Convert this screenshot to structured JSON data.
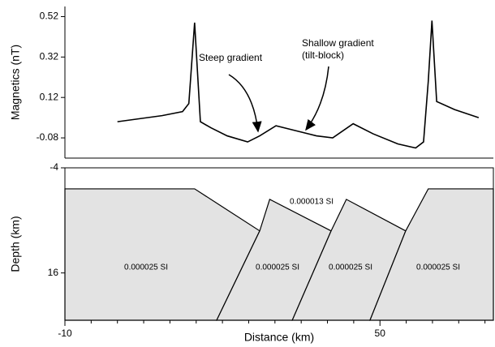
{
  "chart_data": [
    {
      "type": "line",
      "ylabel": "Magnetics (nT)",
      "x": [
        0,
        8.5,
        12.4,
        13.6,
        14.7,
        15.8,
        17.8,
        20.9,
        24.8,
        27.1,
        30.2,
        33.3,
        37.9,
        41,
        44.9,
        48.7,
        53.4,
        56.8,
        58.3,
        59.2,
        59.9,
        60.8,
        64.2,
        68.8
      ],
      "series": [
        {
          "color": "#000000",
          "values": [
            0.0,
            0.03,
            0.05,
            0.09,
            0.49,
            0.0,
            -0.03,
            -0.07,
            -0.1,
            -0.07,
            -0.02,
            -0.04,
            -0.07,
            -0.08,
            -0.01,
            -0.06,
            -0.11,
            -0.13,
            -0.1,
            0.2,
            0.5,
            0.1,
            0.06,
            0.02
          ]
        }
      ],
      "xlim": [
        -10,
        71.6
      ],
      "ylim": [
        -0.18,
        0.57
      ],
      "yticks": [
        0.52,
        0.32,
        0.12,
        -0.08
      ],
      "annotations": [
        "Steep gradient",
        "Shallow gradient",
        "(tilt-block)"
      ]
    },
    {
      "type": "polygon",
      "xlabel": "Distance (km)",
      "ylabel": "Depth (km)",
      "xlim": [
        -10,
        71.6
      ],
      "ylim": [
        25,
        -4
      ],
      "xticks": [
        -10,
        50
      ],
      "yticks": [
        -4,
        16
      ],
      "xticks_minor": [
        -5,
        0,
        5,
        10,
        15,
        20,
        25,
        30,
        35,
        40,
        45,
        55,
        60,
        65,
        70
      ],
      "fill": "#e3e3e3",
      "polygons": [
        {
          "label": "0.000025 SI",
          "x": [
            -10,
            14.7,
            27.1,
            18.9,
            -10
          ],
          "y": [
            0,
            0,
            8,
            25,
            25
          ]
        },
        {
          "label": "0.000025 SI",
          "x": [
            18.9,
            27.1,
            29,
            40.7,
            33.3
          ],
          "y": [
            25,
            8,
            2,
            8,
            25
          ]
        },
        {
          "label": "0.000025 SI",
          "x": [
            33.3,
            40.7,
            43.6,
            54.9,
            48.1
          ],
          "y": [
            25,
            8,
            2,
            8,
            25
          ]
        },
        {
          "label": "0.000025 SI",
          "x": [
            48.1,
            54.9,
            59.2,
            71.6,
            71.6
          ],
          "y": [
            25,
            8,
            0,
            0,
            25
          ]
        }
      ],
      "top_label": "0.000013 SI"
    }
  ]
}
